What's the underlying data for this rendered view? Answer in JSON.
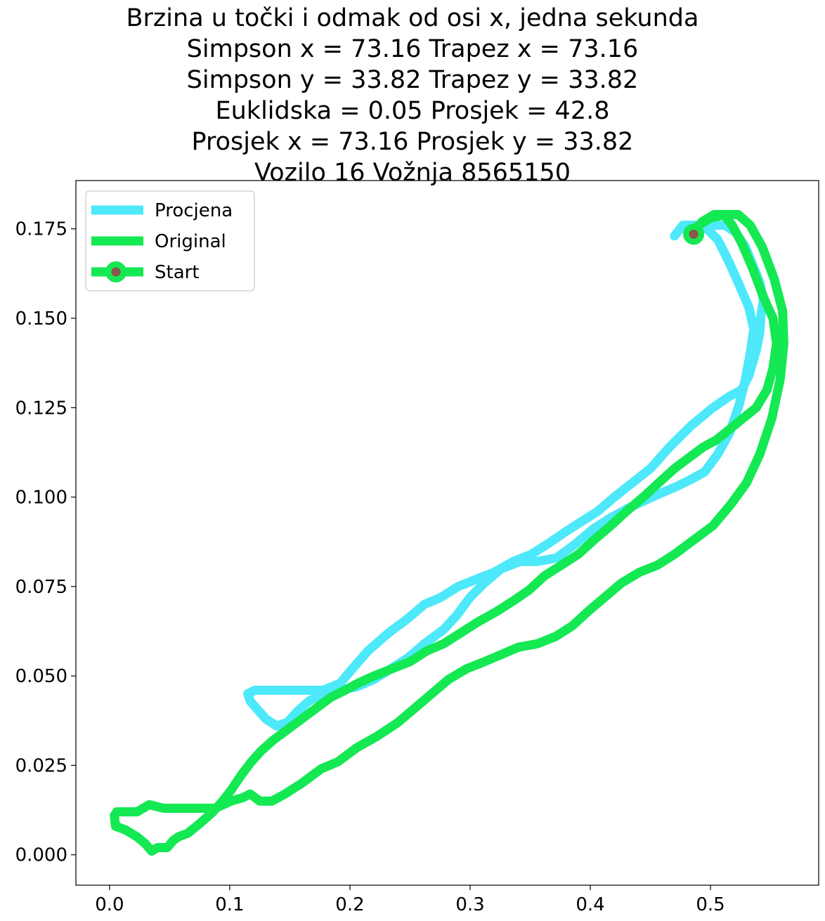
{
  "chart_data": {
    "type": "line",
    "title_lines": [
      "Brzina u točki i odmak od osi x, jedna sekunda",
      "Simpson x = 73.16 Trapez x = 73.16",
      "Simpson y = 33.82 Trapez y = 33.82",
      "Euklidska = 0.05 Prosjek = 42.8",
      "Prosjek x = 73.16 Prosjek y = 33.82",
      "Vozilo 16 Vožnja 8565150"
    ],
    "xlabel": "",
    "ylabel": "",
    "xlim": [
      -0.028,
      0.59
    ],
    "ylim": [
      -0.0085,
      0.1885
    ],
    "x_ticks": [
      0.0,
      0.1,
      0.2,
      0.3,
      0.4,
      0.5
    ],
    "x_tick_labels": [
      "0.0",
      "0.1",
      "0.2",
      "0.3",
      "0.4",
      "0.5"
    ],
    "y_ticks": [
      0.0,
      0.025,
      0.05,
      0.075,
      0.1,
      0.125,
      0.15,
      0.175
    ],
    "y_tick_labels": [
      "0.000",
      "0.025",
      "0.050",
      "0.075",
      "0.100",
      "0.125",
      "0.150",
      "0.175"
    ],
    "grid": false,
    "legend_position": "upper-left",
    "series": [
      {
        "name": "Procjena",
        "color": "#4de8fa",
        "points": [
          [
            0.47,
            0.173
          ],
          [
            0.477,
            0.176
          ],
          [
            0.488,
            0.176
          ],
          [
            0.497,
            0.175
          ],
          [
            0.506,
            0.172
          ],
          [
            0.515,
            0.166
          ],
          [
            0.523,
            0.16
          ],
          [
            0.532,
            0.153
          ],
          [
            0.536,
            0.147
          ],
          [
            0.533,
            0.14
          ],
          [
            0.529,
            0.133
          ],
          [
            0.524,
            0.126
          ],
          [
            0.516,
            0.118
          ],
          [
            0.506,
            0.112
          ],
          [
            0.495,
            0.107
          ],
          [
            0.484,
            0.105
          ],
          [
            0.472,
            0.103
          ],
          [
            0.458,
            0.101
          ],
          [
            0.445,
            0.099
          ],
          [
            0.432,
            0.097
          ],
          [
            0.416,
            0.094
          ],
          [
            0.402,
            0.091
          ],
          [
            0.388,
            0.087
          ],
          [
            0.372,
            0.083
          ],
          [
            0.356,
            0.082
          ],
          [
            0.342,
            0.082
          ],
          [
            0.326,
            0.08
          ],
          [
            0.312,
            0.076
          ],
          [
            0.3,
            0.072
          ],
          [
            0.289,
            0.067
          ],
          [
            0.278,
            0.063
          ],
          [
            0.262,
            0.059
          ],
          [
            0.248,
            0.055
          ],
          [
            0.234,
            0.052
          ],
          [
            0.22,
            0.049
          ],
          [
            0.206,
            0.047
          ],
          [
            0.192,
            0.046
          ],
          [
            0.178,
            0.045
          ],
          [
            0.166,
            0.043
          ],
          [
            0.156,
            0.04
          ],
          [
            0.148,
            0.037
          ],
          [
            0.139,
            0.036
          ],
          [
            0.13,
            0.038
          ],
          [
            0.122,
            0.041
          ],
          [
            0.117,
            0.043
          ],
          [
            0.115,
            0.045
          ],
          [
            0.121,
            0.046
          ],
          [
            0.133,
            0.046
          ],
          [
            0.146,
            0.046
          ],
          [
            0.162,
            0.046
          ],
          [
            0.178,
            0.046
          ],
          [
            0.192,
            0.048
          ],
          [
            0.202,
            0.052
          ],
          [
            0.215,
            0.057
          ],
          [
            0.232,
            0.062
          ],
          [
            0.248,
            0.066
          ],
          [
            0.262,
            0.07
          ],
          [
            0.276,
            0.072
          ],
          [
            0.29,
            0.075
          ],
          [
            0.305,
            0.077
          ],
          [
            0.32,
            0.079
          ],
          [
            0.336,
            0.082
          ],
          [
            0.351,
            0.084
          ],
          [
            0.365,
            0.087
          ],
          [
            0.378,
            0.09
          ],
          [
            0.392,
            0.093
          ],
          [
            0.406,
            0.096
          ],
          [
            0.42,
            0.1
          ],
          [
            0.435,
            0.104
          ],
          [
            0.45,
            0.108
          ],
          [
            0.466,
            0.114
          ],
          [
            0.484,
            0.12
          ],
          [
            0.502,
            0.125
          ],
          [
            0.515,
            0.128
          ],
          [
            0.526,
            0.13
          ],
          [
            0.532,
            0.134
          ],
          [
            0.538,
            0.141
          ],
          [
            0.541,
            0.146
          ],
          [
            0.542,
            0.151
          ],
          [
            0.544,
            0.155
          ],
          [
            0.541,
            0.16
          ],
          [
            0.535,
            0.165
          ],
          [
            0.529,
            0.17
          ],
          [
            0.521,
            0.174
          ],
          [
            0.512,
            0.176
          ],
          [
            0.5,
            0.176
          ],
          [
            0.486,
            0.175
          ],
          [
            0.478,
            0.175
          ]
        ]
      },
      {
        "name": "Original",
        "color": "#14e852",
        "points": [
          [
            0.486,
            0.174
          ],
          [
            0.493,
            0.177
          ],
          [
            0.503,
            0.179
          ],
          [
            0.511,
            0.179
          ],
          [
            0.518,
            0.176
          ],
          [
            0.526,
            0.171
          ],
          [
            0.535,
            0.164
          ],
          [
            0.544,
            0.156
          ],
          [
            0.552,
            0.15
          ],
          [
            0.555,
            0.143
          ],
          [
            0.552,
            0.136
          ],
          [
            0.547,
            0.13
          ],
          [
            0.538,
            0.125
          ],
          [
            0.527,
            0.122
          ],
          [
            0.516,
            0.119
          ],
          [
            0.505,
            0.116
          ],
          [
            0.494,
            0.114
          ],
          [
            0.482,
            0.111
          ],
          [
            0.47,
            0.108
          ],
          [
            0.457,
            0.104
          ],
          [
            0.444,
            0.1
          ],
          [
            0.43,
            0.096
          ],
          [
            0.417,
            0.092
          ],
          [
            0.403,
            0.088
          ],
          [
            0.39,
            0.084
          ],
          [
            0.376,
            0.081
          ],
          [
            0.362,
            0.078
          ],
          [
            0.349,
            0.074
          ],
          [
            0.336,
            0.071
          ],
          [
            0.322,
            0.068
          ],
          [
            0.306,
            0.065
          ],
          [
            0.292,
            0.062
          ],
          [
            0.278,
            0.059
          ],
          [
            0.264,
            0.057
          ],
          [
            0.25,
            0.054
          ],
          [
            0.235,
            0.052
          ],
          [
            0.22,
            0.05
          ],
          [
            0.207,
            0.048
          ],
          [
            0.196,
            0.046
          ],
          [
            0.184,
            0.044
          ],
          [
            0.172,
            0.041
          ],
          [
            0.16,
            0.038
          ],
          [
            0.148,
            0.035
          ],
          [
            0.136,
            0.032
          ],
          [
            0.126,
            0.029
          ],
          [
            0.118,
            0.026
          ],
          [
            0.109,
            0.022
          ],
          [
            0.101,
            0.018
          ],
          [
            0.094,
            0.015
          ],
          [
            0.086,
            0.012
          ],
          [
            0.076,
            0.009
          ],
          [
            0.065,
            0.006
          ],
          [
            0.057,
            0.005
          ],
          [
            0.053,
            0.004
          ],
          [
            0.048,
            0.002
          ],
          [
            0.045,
            0.002
          ],
          [
            0.043,
            0.002
          ],
          [
            0.04,
            0.002
          ],
          [
            0.035,
            0.001
          ],
          [
            0.03,
            0.003
          ],
          [
            0.023,
            0.005
          ],
          [
            0.013,
            0.007
          ],
          [
            0.005,
            0.008
          ],
          [
            0.004,
            0.011
          ],
          [
            0.006,
            0.012
          ],
          [
            0.014,
            0.012
          ],
          [
            0.023,
            0.012
          ],
          [
            0.033,
            0.014
          ],
          [
            0.045,
            0.013
          ],
          [
            0.06,
            0.013
          ],
          [
            0.075,
            0.013
          ],
          [
            0.088,
            0.013
          ],
          [
            0.101,
            0.015
          ],
          [
            0.111,
            0.016
          ],
          [
            0.117,
            0.017
          ],
          [
            0.125,
            0.015
          ],
          [
            0.135,
            0.015
          ],
          [
            0.146,
            0.017
          ],
          [
            0.16,
            0.02
          ],
          [
            0.176,
            0.024
          ],
          [
            0.19,
            0.026
          ],
          [
            0.206,
            0.03
          ],
          [
            0.222,
            0.033
          ],
          [
            0.24,
            0.037
          ],
          [
            0.254,
            0.041
          ],
          [
            0.268,
            0.045
          ],
          [
            0.282,
            0.049
          ],
          [
            0.297,
            0.052
          ],
          [
            0.312,
            0.054
          ],
          [
            0.326,
            0.056
          ],
          [
            0.34,
            0.058
          ],
          [
            0.356,
            0.059
          ],
          [
            0.371,
            0.061
          ],
          [
            0.385,
            0.064
          ],
          [
            0.398,
            0.068
          ],
          [
            0.412,
            0.072
          ],
          [
            0.426,
            0.076
          ],
          [
            0.441,
            0.079
          ],
          [
            0.456,
            0.081
          ],
          [
            0.47,
            0.084
          ],
          [
            0.486,
            0.088
          ],
          [
            0.502,
            0.092
          ],
          [
            0.517,
            0.098
          ],
          [
            0.53,
            0.104
          ],
          [
            0.541,
            0.112
          ],
          [
            0.551,
            0.122
          ],
          [
            0.558,
            0.133
          ],
          [
            0.561,
            0.143
          ],
          [
            0.56,
            0.152
          ],
          [
            0.553,
            0.161
          ],
          [
            0.543,
            0.17
          ],
          [
            0.533,
            0.176
          ],
          [
            0.523,
            0.179
          ],
          [
            0.512,
            0.179
          ],
          [
            0.5,
            0.178
          ],
          [
            0.49,
            0.176
          ]
        ]
      }
    ],
    "start_marker": {
      "name": "Start",
      "x": 0.486,
      "y": 0.1735,
      "ring_color": "#14e852",
      "dot_color": "#8c564b"
    }
  }
}
